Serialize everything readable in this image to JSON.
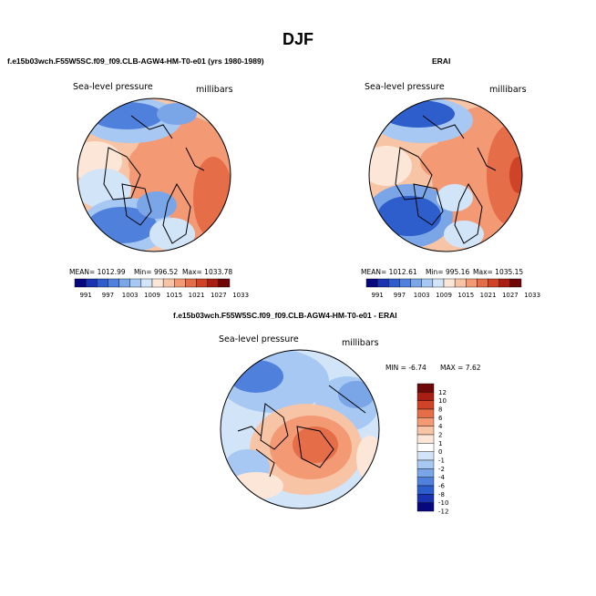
{
  "figure": {
    "season": "DJF",
    "panel_left_title": "f.e15b03wch.F55W5SC.f09_f09.CLB-AGW4-HM-T0-e01 (yrs 1980-1989)",
    "panel_right_title": "ERAI",
    "panel_diff_title": "f.e15b03wch.F55W5SC.f09_f09.CLB-AGW4-HM-T0-e01 - ERAI",
    "variable": "Sea-level pressure",
    "units": "millibars"
  },
  "stats_left": {
    "mean": "MEAN= 1012.99",
    "min": "Min= 996.52",
    "max": "Max= 1033.78"
  },
  "stats_right": {
    "mean": "MEAN= 1012.61",
    "min": "Min= 995.16",
    "max": "Max= 1035.15"
  },
  "stats_diff": {
    "min": "MIN =   -6.74",
    "max": "MAX =    7.62"
  },
  "colors": {
    "levels_abs": [
      "#08087e",
      "#1a33b0",
      "#2e5ecc",
      "#4f80dc",
      "#7aa6e8",
      "#a7c8f2",
      "#d2e4f8",
      "#fbe6d8",
      "#f8c4a6",
      "#f39a74",
      "#e56d48",
      "#cf4327",
      "#a81e13",
      "#6e0808"
    ],
    "levels_diff": [
      "#08087e",
      "#1a33b0",
      "#2e5ecc",
      "#4f80dc",
      "#7aa6e8",
      "#a7c8f2",
      "#d2e4f8",
      "#ffffff",
      "#fbe6d8",
      "#f8c4a6",
      "#f39a74",
      "#e56d48",
      "#cf4327",
      "#a81e13",
      "#6e0808"
    ]
  },
  "chart_data": [
    {
      "type": "heatmap",
      "title": "f.e15b03wch.F55W5SC.f09_f09.CLB-AGW4-HM-T0-e01 (yrs 1980-1989)",
      "variable": "Sea-level pressure",
      "units": "millibars",
      "projection": "polar-stereographic",
      "colorbar_ticks": [
        "991",
        "997",
        "1003",
        "1009",
        "1015",
        "1021",
        "1027",
        "1033"
      ],
      "mean": 1012.99,
      "min": 996.52,
      "max": 1033.78
    },
    {
      "type": "heatmap",
      "title": "ERAI",
      "variable": "Sea-level pressure",
      "units": "millibars",
      "projection": "polar-stereographic",
      "colorbar_ticks": [
        "991",
        "997",
        "1003",
        "1009",
        "1015",
        "1021",
        "1027",
        "1033"
      ],
      "mean": 1012.61,
      "min": 995.16,
      "max": 1035.15
    },
    {
      "type": "heatmap",
      "title": "f.e15b03wch.F55W5SC.f09_f09.CLB-AGW4-HM-T0-e01 - ERAI",
      "variable": "Sea-level pressure",
      "units": "millibars",
      "projection": "polar-stereographic",
      "colorbar_ticks": [
        "12",
        "10",
        "8",
        "6",
        "4",
        "2",
        "1",
        "0",
        "-1",
        "-2",
        "-4",
        "-6",
        "-8",
        "-10",
        "-12"
      ],
      "min": -6.74,
      "max": 7.62
    }
  ]
}
